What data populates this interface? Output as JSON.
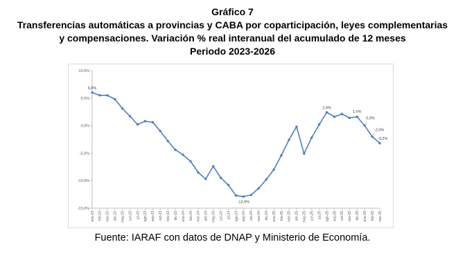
{
  "header": {
    "figure_number": "Gráfico 7",
    "title_line1": "Transferencias automáticas a provincias y CABA por coparticipación, leyes complementarias",
    "title_line2": "y compensaciones.  Variación % real interanual del acumulado de 12 meses",
    "title_line3": "Periodo 2023-2026"
  },
  "footer": {
    "source": "Fuente: IARAF con datos de DNAP y Ministerio de Economía."
  },
  "chart_data": {
    "type": "line",
    "title": "Transferencias automáticas a provincias y CABA por coparticipación, leyes complementarias y compensaciones. Variación % real interanual del acumulado de 12 meses. Periodo 2023-2026",
    "xlabel": "",
    "ylabel": "",
    "ylim": [
      -15,
      10
    ],
    "yticks": [
      10,
      5,
      0,
      -5,
      -10,
      -15
    ],
    "ytick_labels": [
      "10,0%",
      "5,0%",
      "0,0%",
      "-5,0%",
      "-10,0%",
      "-15,0%"
    ],
    "grid": false,
    "line_color": "#4A7EBB",
    "categories": [
      "ene-23",
      "feb-23",
      "mar-23",
      "abr-23",
      "may-23",
      "jun-23",
      "jul-23",
      "ago-23",
      "sep-23",
      "oct-23",
      "nov-23",
      "dic-23",
      "ene-24",
      "feb-24",
      "mar-24",
      "abr-24",
      "may-24",
      "jun-24",
      "jul-24",
      "ago-24",
      "sep-24",
      "oct-24",
      "nov-24",
      "dic-24",
      "ene-25",
      "feb-25",
      "mar-25",
      "abr-25",
      "may-25",
      "jun-25",
      "jul-25",
      "ago-25",
      "sep-25",
      "oct-25",
      "nov-25",
      "dic-25",
      "ene-26",
      "feb-26",
      "mar-26"
    ],
    "series": [
      {
        "name": "Variación % real interanual",
        "values": [
          6.0,
          5.5,
          5.5,
          4.8,
          3.1,
          1.7,
          0.2,
          0.8,
          0.6,
          -1.0,
          -2.8,
          -4.4,
          -5.3,
          -6.5,
          -8.5,
          -9.7,
          -7.4,
          -9.5,
          -10.8,
          -12.7,
          -12.9,
          -12.6,
          -11.4,
          -9.8,
          -8.0,
          -5.4,
          -2.6,
          -0.2,
          -5.1,
          -2.2,
          0.2,
          2.4,
          1.6,
          2.1,
          1.4,
          1.6,
          0.0,
          -2.0,
          -3.2
        ]
      }
    ],
    "data_labels": [
      {
        "index": 0,
        "text": "6,0%"
      },
      {
        "index": 20,
        "text": "-12,9%"
      },
      {
        "index": 31,
        "text": "2,4%"
      },
      {
        "index": 35,
        "text": "1,6%"
      },
      {
        "index": 36,
        "text": "0,0%"
      },
      {
        "index": 37,
        "text": "-2,0%"
      },
      {
        "index": 38,
        "text": "-3,2%"
      }
    ]
  }
}
